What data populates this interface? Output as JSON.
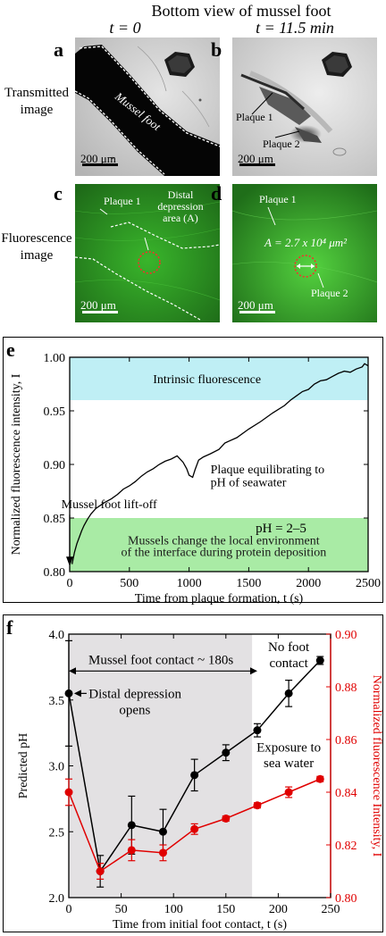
{
  "top": {
    "title": "Bottom view of mussel foot",
    "t0_label": "t = 0",
    "t1_label": "t = 11.5 min",
    "row_transmitted": [
      "Transmitted",
      "image"
    ],
    "row_fluorescence": [
      "Fluorescence",
      "image"
    ],
    "panels": {
      "a": {
        "letter": "a",
        "foot_label": "Mussel foot",
        "scale": "200 μm"
      },
      "b": {
        "letter": "b",
        "plaque1": "Plaque 1",
        "plaque2": "Plaque 2",
        "scale": "200 μm"
      },
      "c": {
        "letter": "c",
        "plaque1": "Plaque 1",
        "distal_lines": [
          "Distal",
          "depression",
          "area (A)"
        ],
        "scale": "200 μm"
      },
      "d": {
        "letter": "d",
        "plaque1": "Plaque 1",
        "area_label": "A = 2.7 x 10⁴ μm²",
        "plaque2": "Plaque 2",
        "scale": "200 μm"
      }
    }
  },
  "chart_data": [
    {
      "panel": "e",
      "type": "line",
      "ylabel": "Normalized fluorescence intensity, I",
      "xlabel": "Time from plaque formation, t (s)",
      "xlim": [
        0,
        2500
      ],
      "ylim": [
        0.8,
        1.0
      ],
      "xticks": [
        0,
        500,
        1000,
        1500,
        2000,
        2500
      ],
      "yticks": [
        0.8,
        0.85,
        0.9,
        0.95,
        1.0
      ],
      "ytick_labels": [
        "0.80",
        "0.85",
        "0.90",
        "0.95",
        "1.00"
      ],
      "bands": [
        {
          "y0": 0.96,
          "y1": 1.0,
          "color": "#bfeff5",
          "label": "Intrinsic fluorescence"
        },
        {
          "y0": 0.8,
          "y1": 0.85,
          "color": "#a9eba5",
          "label_main": "pH = 2–5",
          "label_lines": [
            "Mussels change the local environment",
            "of the interface during protein deposition"
          ]
        }
      ],
      "annotations": {
        "plateau": [
          "Plaque equilibrating to",
          "pH of seawater"
        ],
        "liftoff": "Mussel foot lift-off"
      },
      "series": [
        {
          "x": [
            20,
            40,
            60,
            80,
            100,
            120,
            150,
            180,
            220,
            260,
            300,
            350,
            400,
            450,
            500,
            550,
            600,
            650,
            700,
            750,
            800,
            850,
            900,
            950,
            980,
            1000,
            1030,
            1050,
            1080,
            1120,
            1180,
            1250,
            1300,
            1400,
            1500,
            1600,
            1700,
            1800,
            1850,
            1900,
            1950,
            2000,
            2050,
            2100,
            2150,
            2200,
            2250,
            2300,
            2350,
            2400,
            2450,
            2470,
            2500
          ],
          "y": [
            0.807,
            0.818,
            0.826,
            0.832,
            0.838,
            0.843,
            0.849,
            0.854,
            0.859,
            0.862,
            0.865,
            0.868,
            0.872,
            0.877,
            0.88,
            0.884,
            0.889,
            0.893,
            0.896,
            0.9,
            0.903,
            0.905,
            0.908,
            0.902,
            0.896,
            0.89,
            0.888,
            0.895,
            0.904,
            0.907,
            0.91,
            0.914,
            0.92,
            0.925,
            0.933,
            0.94,
            0.948,
            0.955,
            0.96,
            0.964,
            0.968,
            0.97,
            0.975,
            0.978,
            0.979,
            0.982,
            0.985,
            0.987,
            0.986,
            0.989,
            0.991,
            0.994,
            0.992
          ],
          "color": "#000000"
        }
      ]
    },
    {
      "panel": "f",
      "type": "line",
      "xlabel": "Time from initial foot contact, t (s)",
      "ylabel_left": "Predicted pH",
      "ylabel_right": "Normalized fluorescence Intensity, I",
      "xlim": [
        0,
        250
      ],
      "ylim_left": [
        2.0,
        4.0
      ],
      "ylim_right": [
        0.8,
        0.9
      ],
      "xticks": [
        0,
        50,
        100,
        150,
        200,
        250
      ],
      "yticks_left": [
        2.0,
        2.5,
        3.0,
        3.5,
        4.0
      ],
      "ytick_labels_left": [
        "2.0",
        "2.5",
        "3.0",
        "3.5",
        "4.0"
      ],
      "yticks_right": [
        0.8,
        0.82,
        0.84,
        0.86,
        0.88,
        0.9
      ],
      "ytick_labels_right": [
        "0.80",
        "0.82",
        "0.84",
        "0.86",
        "0.88",
        "0.90"
      ],
      "shaded_region": {
        "x0": 0,
        "x1": 175,
        "color": "#e3e1e3"
      },
      "annotations": {
        "contact": "Mussel foot contact ~ 180s",
        "distal": [
          "Distal depression",
          "opens"
        ],
        "no_contact": [
          "No foot",
          "contact"
        ],
        "exposure": [
          "Exposure to",
          "sea water"
        ]
      },
      "series": [
        {
          "name": "Predicted pH",
          "axis": "left",
          "color": "#000000",
          "x": [
            0,
            30,
            60,
            90,
            120,
            150,
            180,
            210,
            240
          ],
          "y": [
            3.55,
            2.2,
            2.55,
            2.5,
            2.93,
            3.1,
            3.27,
            3.55,
            3.8
          ],
          "err": [
            0.4,
            0.12,
            0.22,
            0.17,
            0.12,
            0.06,
            0.05,
            0.1,
            0.03
          ]
        },
        {
          "name": "Normalized fluorescence Intensity",
          "axis": "right",
          "color": "#e00000",
          "x": [
            0,
            30,
            60,
            90,
            120,
            150,
            180,
            210,
            240
          ],
          "y": [
            0.84,
            0.81,
            0.818,
            0.817,
            0.826,
            0.83,
            0.835,
            0.84,
            0.845
          ],
          "err": [
            0.005,
            0.003,
            0.004,
            0.003,
            0.002,
            0.001,
            0.001,
            0.002,
            0.001
          ]
        }
      ]
    }
  ]
}
